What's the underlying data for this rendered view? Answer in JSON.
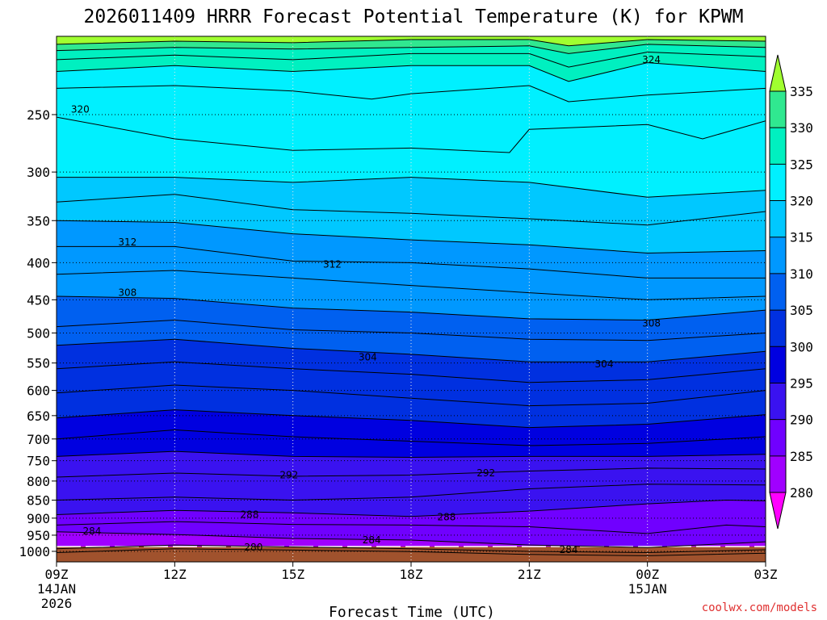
{
  "chart_data": {
    "type": "heatmap",
    "title": "2026011409 HRRR Forecast Potential Temperature (K) for KPWM",
    "xlabel": "Forecast Time (UTC)",
    "credit": "coolwx.com/models",
    "x_ticks": [
      {
        "hour": 0,
        "label": "09Z",
        "sub1": "14JAN",
        "sub2": "2026"
      },
      {
        "hour": 3,
        "label": "12Z",
        "sub1": "",
        "sub2": ""
      },
      {
        "hour": 6,
        "label": "15Z",
        "sub1": "",
        "sub2": ""
      },
      {
        "hour": 9,
        "label": "18Z",
        "sub1": "",
        "sub2": ""
      },
      {
        "hour": 12,
        "label": "21Z",
        "sub1": "",
        "sub2": ""
      },
      {
        "hour": 15,
        "label": "00Z",
        "sub1": "15JAN",
        "sub2": ""
      },
      {
        "hour": 18,
        "label": "03Z",
        "sub1": "",
        "sub2": ""
      }
    ],
    "x_range_hours": [
      0,
      18
    ],
    "y_axis": "pressure (hPa)",
    "y_range": [
      1034,
      195
    ],
    "y_ticks": [
      250,
      300,
      350,
      400,
      450,
      500,
      550,
      600,
      650,
      700,
      750,
      800,
      850,
      900,
      950,
      1000
    ],
    "surface_pressure": 985,
    "colorbar": {
      "ticks": [
        280,
        285,
        290,
        295,
        300,
        305,
        310,
        315,
        320,
        325,
        330,
        335
      ],
      "colors": [
        "#ff00ff",
        "#a000ff",
        "#7000ff",
        "#3a12f0",
        "#0000e0",
        "#0030e0",
        "#0060f0",
        "#0098ff",
        "#00c8ff",
        "#00f0ff",
        "#00f0c0",
        "#30e890",
        "#40f040",
        "#b0ff40"
      ],
      "under_color": "#ff00ff",
      "over_color": "#a0ff30"
    },
    "contour_interval": 2,
    "contour_labels": [
      {
        "value": 324,
        "hour": 15.1,
        "pressure": 210
      },
      {
        "value": 320,
        "hour": 0.6,
        "pressure": 246
      },
      {
        "value": 312,
        "hour": 1.8,
        "pressure": 375
      },
      {
        "value": 312,
        "hour": 7.0,
        "pressure": 402
      },
      {
        "value": 308,
        "hour": 1.8,
        "pressure": 440
      },
      {
        "value": 308,
        "hour": 15.1,
        "pressure": 485
      },
      {
        "value": 304,
        "hour": 7.9,
        "pressure": 540
      },
      {
        "value": 304,
        "hour": 13.9,
        "pressure": 552
      },
      {
        "value": 292,
        "hour": 5.9,
        "pressure": 785
      },
      {
        "value": 292,
        "hour": 10.9,
        "pressure": 780
      },
      {
        "value": 288,
        "hour": 4.9,
        "pressure": 890
      },
      {
        "value": 288,
        "hour": 9.9,
        "pressure": 897
      },
      {
        "value": 284,
        "hour": 0.9,
        "pressure": 938
      },
      {
        "value": 284,
        "hour": 8.0,
        "pressure": 965
      },
      {
        "value": 284,
        "hour": 13.0,
        "pressure": 995
      },
      {
        "value": 280,
        "hour": 5.0,
        "pressure": 988
      }
    ],
    "isentropes": [
      {
        "value": 280,
        "points": [
          [
            0,
            1004
          ],
          [
            3,
            992
          ],
          [
            6,
            996
          ],
          [
            9,
            1001
          ],
          [
            12,
            1010
          ],
          [
            15,
            1014
          ],
          [
            18,
            1006
          ]
        ]
      },
      {
        "value": 282,
        "points": [
          [
            0,
            992
          ],
          [
            3,
            980
          ],
          [
            6,
            986
          ],
          [
            9,
            992
          ],
          [
            12,
            1000
          ],
          [
            15,
            1004
          ],
          [
            18,
            995
          ]
        ]
      },
      {
        "value": 284,
        "points": [
          [
            0,
            940
          ],
          [
            3,
            948
          ],
          [
            6,
            960
          ],
          [
            9,
            965
          ],
          [
            12,
            980
          ],
          [
            15,
            988
          ],
          [
            18,
            970
          ]
        ]
      },
      {
        "value": 286,
        "points": [
          [
            0,
            920
          ],
          [
            3,
            910
          ],
          [
            6,
            918
          ],
          [
            9,
            920
          ],
          [
            12,
            925
          ],
          [
            15,
            945
          ],
          [
            17,
            920
          ],
          [
            18,
            925
          ]
        ]
      },
      {
        "value": 288,
        "points": [
          [
            0,
            890
          ],
          [
            3,
            878
          ],
          [
            6,
            885
          ],
          [
            9,
            895
          ],
          [
            12,
            880
          ],
          [
            15,
            860
          ],
          [
            17,
            850
          ],
          [
            18,
            852
          ]
        ]
      },
      {
        "value": 290,
        "points": [
          [
            0,
            850
          ],
          [
            3,
            842
          ],
          [
            6,
            850
          ],
          [
            9,
            842
          ],
          [
            12,
            820
          ],
          [
            15,
            808
          ],
          [
            18,
            810
          ]
        ]
      },
      {
        "value": 292,
        "points": [
          [
            0,
            790
          ],
          [
            3,
            780
          ],
          [
            6,
            788
          ],
          [
            9,
            785
          ],
          [
            12,
            775
          ],
          [
            15,
            768
          ],
          [
            18,
            770
          ]
        ]
      },
      {
        "value": 294,
        "points": [
          [
            0,
            740
          ],
          [
            3,
            728
          ],
          [
            6,
            740
          ],
          [
            9,
            742
          ],
          [
            12,
            740
          ],
          [
            15,
            740
          ],
          [
            18,
            735
          ]
        ]
      },
      {
        "value": 296,
        "points": [
          [
            0,
            700
          ],
          [
            3,
            680
          ],
          [
            6,
            695
          ],
          [
            9,
            705
          ],
          [
            12,
            715
          ],
          [
            15,
            710
          ],
          [
            18,
            695
          ]
        ]
      },
      {
        "value": 298,
        "points": [
          [
            0,
            655
          ],
          [
            3,
            638
          ],
          [
            6,
            650
          ],
          [
            9,
            660
          ],
          [
            12,
            675
          ],
          [
            15,
            668
          ],
          [
            18,
            648
          ]
        ]
      },
      {
        "value": 300,
        "points": [
          [
            0,
            605
          ],
          [
            3,
            590
          ],
          [
            6,
            600
          ],
          [
            9,
            615
          ],
          [
            12,
            630
          ],
          [
            15,
            625
          ],
          [
            18,
            600
          ]
        ]
      },
      {
        "value": 302,
        "points": [
          [
            0,
            560
          ],
          [
            3,
            548
          ],
          [
            6,
            560
          ],
          [
            9,
            570
          ],
          [
            12,
            585
          ],
          [
            15,
            580
          ],
          [
            18,
            560
          ]
        ]
      },
      {
        "value": 304,
        "points": [
          [
            0,
            520
          ],
          [
            3,
            510
          ],
          [
            6,
            525
          ],
          [
            9,
            535
          ],
          [
            12,
            548
          ],
          [
            15,
            548
          ],
          [
            18,
            530
          ]
        ]
      },
      {
        "value": 306,
        "points": [
          [
            0,
            490
          ],
          [
            3,
            480
          ],
          [
            6,
            495
          ],
          [
            9,
            500
          ],
          [
            12,
            510
          ],
          [
            15,
            512
          ],
          [
            18,
            500
          ]
        ]
      },
      {
        "value": 308,
        "points": [
          [
            0,
            445
          ],
          [
            3,
            448
          ],
          [
            6,
            462
          ],
          [
            9,
            468
          ],
          [
            12,
            478
          ],
          [
            15,
            480
          ],
          [
            18,
            465
          ]
        ]
      },
      {
        "value": 310,
        "points": [
          [
            0,
            415
          ],
          [
            3,
            410
          ],
          [
            6,
            420
          ],
          [
            9,
            430
          ],
          [
            12,
            440
          ],
          [
            15,
            450
          ],
          [
            18,
            445
          ]
        ]
      },
      {
        "value": 312,
        "points": [
          [
            0,
            380
          ],
          [
            3,
            380
          ],
          [
            6,
            398
          ],
          [
            9,
            400
          ],
          [
            12,
            408
          ],
          [
            15,
            420
          ],
          [
            18,
            420
          ]
        ]
      },
      {
        "value": 314,
        "points": [
          [
            0,
            350
          ],
          [
            3,
            352
          ],
          [
            6,
            365
          ],
          [
            9,
            372
          ],
          [
            12,
            378
          ],
          [
            15,
            388
          ],
          [
            18,
            385
          ]
        ]
      },
      {
        "value": 316,
        "points": [
          [
            0,
            330
          ],
          [
            3,
            322
          ],
          [
            6,
            338
          ],
          [
            9,
            342
          ],
          [
            12,
            348
          ],
          [
            15,
            355
          ],
          [
            18,
            340
          ]
        ]
      },
      {
        "value": 318,
        "points": [
          [
            0,
            305
          ],
          [
            3,
            305
          ],
          [
            6,
            310
          ],
          [
            9,
            305
          ],
          [
            12,
            310
          ],
          [
            15,
            325
          ],
          [
            18,
            318
          ]
        ]
      },
      {
        "value": 320,
        "points": [
          [
            0,
            252
          ],
          [
            3,
            270
          ],
          [
            6,
            280
          ],
          [
            9,
            278
          ],
          [
            11.5,
            282
          ],
          [
            12,
            262
          ],
          [
            15,
            258
          ],
          [
            16.4,
            270
          ],
          [
            18,
            255
          ]
        ]
      },
      {
        "value": 322,
        "points": [
          [
            0,
            230
          ],
          [
            3,
            228
          ],
          [
            6,
            232
          ],
          [
            8,
            238
          ],
          [
            9,
            234
          ],
          [
            12,
            228
          ],
          [
            13,
            240
          ],
          [
            15,
            235
          ],
          [
            18,
            230
          ]
        ]
      },
      {
        "value": 324,
        "points": [
          [
            0,
            218
          ],
          [
            3,
            214
          ],
          [
            6,
            218
          ],
          [
            9,
            214
          ],
          [
            12,
            214
          ],
          [
            13,
            225
          ],
          [
            15,
            212
          ],
          [
            18,
            218
          ]
        ]
      },
      {
        "value": 326,
        "points": [
          [
            0,
            210
          ],
          [
            3,
            207
          ],
          [
            6,
            210
          ],
          [
            9,
            206
          ],
          [
            12,
            206
          ],
          [
            13,
            215
          ],
          [
            15,
            205
          ],
          [
            18,
            208
          ]
        ]
      },
      {
        "value": 328,
        "points": [
          [
            0,
            204
          ],
          [
            3,
            202
          ],
          [
            6,
            203
          ],
          [
            9,
            202
          ],
          [
            12,
            201
          ],
          [
            13,
            206
          ],
          [
            15,
            200
          ],
          [
            18,
            202
          ]
        ]
      },
      {
        "value": 330,
        "points": [
          [
            0,
            200
          ],
          [
            3,
            198
          ],
          [
            6,
            199
          ],
          [
            9,
            197
          ],
          [
            12,
            197
          ],
          [
            13,
            201
          ],
          [
            15,
            197
          ],
          [
            18,
            198
          ]
        ]
      }
    ]
  }
}
